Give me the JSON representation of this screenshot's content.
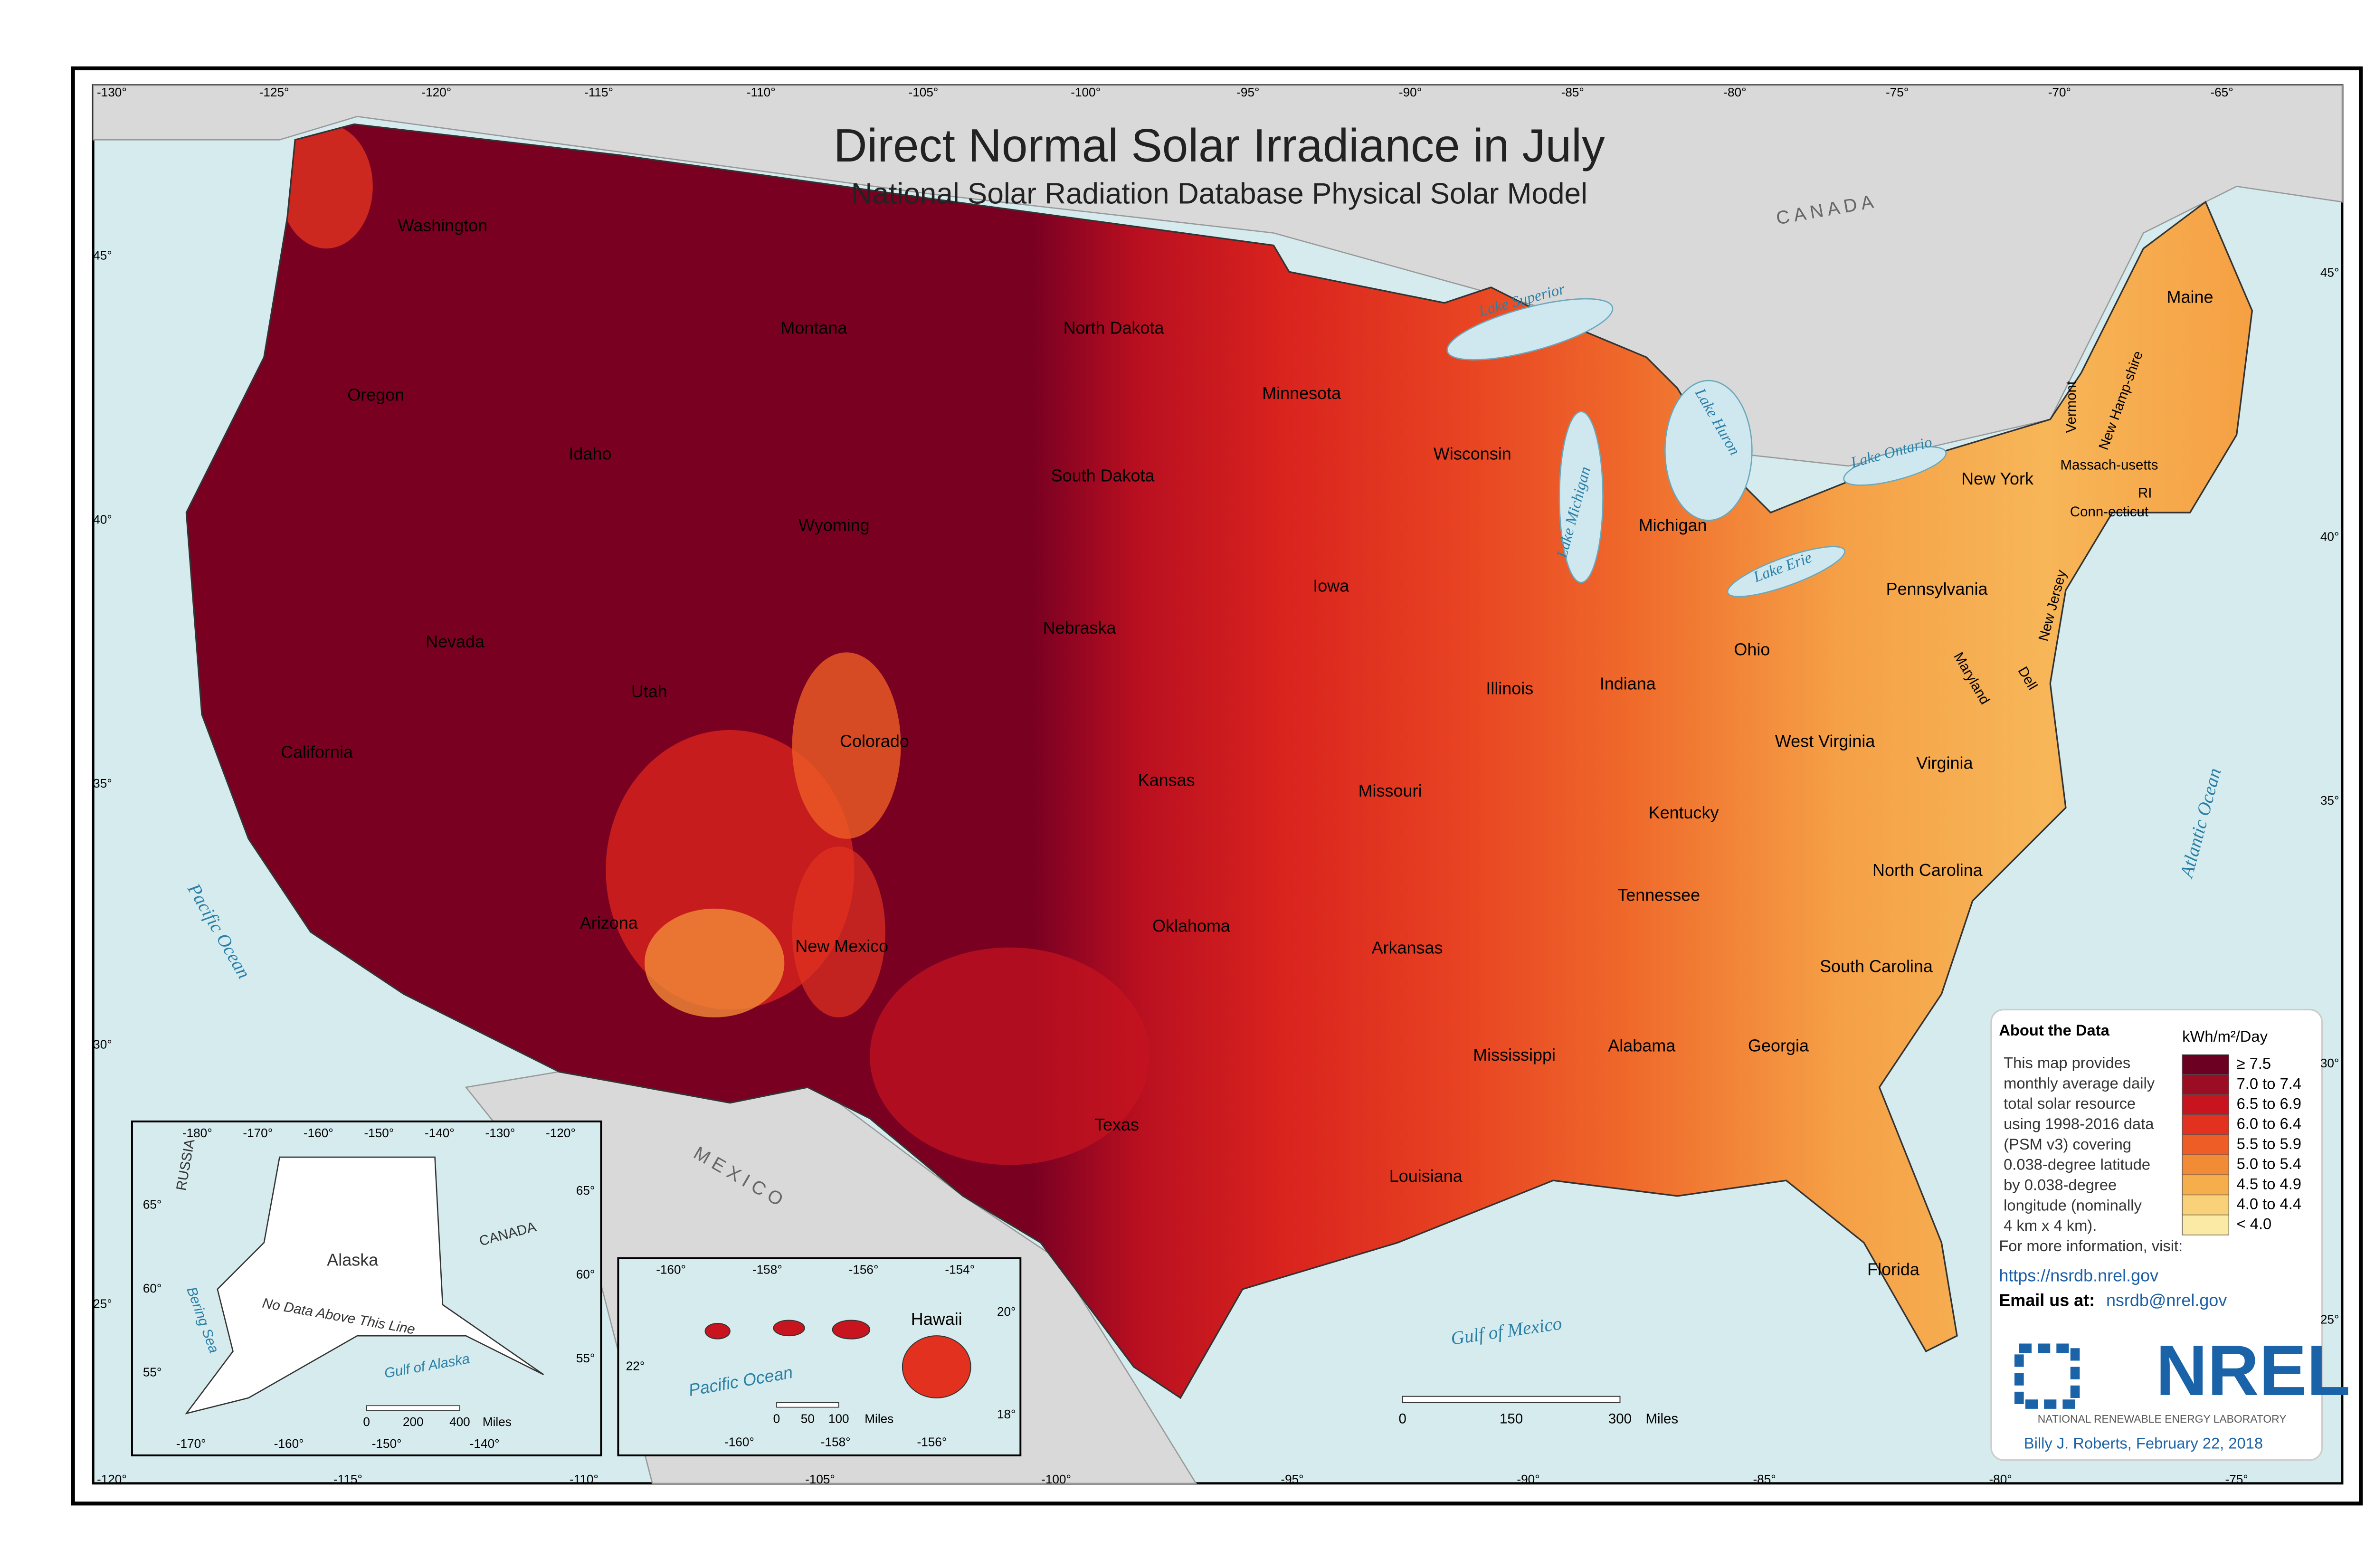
{
  "title": "Direct Normal Solar Irradiance in July",
  "subtitle": "National Solar Radiation Database Physical Solar Model",
  "graticule": {
    "top": [
      "-130°",
      "-125°",
      "-120°",
      "-115°",
      "-110°",
      "-105°",
      "-100°",
      "-95°",
      "-90°",
      "-85°",
      "-80°",
      "-75°",
      "-70°",
      "-65°"
    ],
    "bottom": [
      "-120°",
      "-115°",
      "-110°",
      "-105°",
      "-100°",
      "-95°",
      "-90°",
      "-85°",
      "-80°",
      "-75°"
    ],
    "left": [
      "45°",
      "40°",
      "35°",
      "30°",
      "25°"
    ],
    "right": [
      "45°",
      "40°",
      "35°",
      "30°",
      "25°"
    ]
  },
  "states": [
    "Washington",
    "Oregon",
    "Idaho",
    "Montana",
    "Wyoming",
    "Nevada",
    "Utah",
    "Colorado",
    "California",
    "Arizona",
    "New Mexico",
    "North Dakota",
    "South Dakota",
    "Nebraska",
    "Kansas",
    "Oklahoma",
    "Texas",
    "Minnesota",
    "Iowa",
    "Missouri",
    "Arkansas",
    "Louisiana",
    "Wisconsin",
    "Illinois",
    "Michigan",
    "Indiana",
    "Ohio",
    "Kentucky",
    "Tennessee",
    "Mississippi",
    "Alabama",
    "Georgia",
    "Florida",
    "South Carolina",
    "North Carolina",
    "Virginia",
    "West Virginia",
    "Pennsylvania",
    "New York",
    "Maine",
    "Vermont",
    "New Hamp-shire",
    "Massach-usetts",
    "Conn-ecticut",
    "RI",
    "New Jersey",
    "Maryland",
    "Dell"
  ],
  "water": [
    "Lake Superior",
    "Lake Huron",
    "Lake Michigan",
    "Lake Ontario",
    "Lake Erie",
    "Pacific Ocean",
    "Atlantic Ocean",
    "Gulf of Mexico"
  ],
  "countries": [
    "C A N A D A",
    "M E X I C O"
  ],
  "scale": [
    "0",
    "150",
    "300",
    "Miles"
  ],
  "about": {
    "title": "About the Data",
    "lines": [
      "This map provides",
      "monthly average daily",
      "total solar resource",
      "using 1998-2016 data",
      "(PSM v3) covering",
      "0.038-degree latitude",
      "by 0.038-degree",
      "longitude (nominally",
      "4 km x 4 km).",
      "For more information, visit:"
    ],
    "link": "https://nsrdb.nrel.gov",
    "email_label": "Email us at:",
    "email": "nsrdb@nrel.gov"
  },
  "legend": {
    "title": "kWh/m²/Day",
    "items": [
      {
        "label": "≥ 7.5",
        "color": "#6b0023"
      },
      {
        "label": "7.0 to 7.4",
        "color": "#9b0d22"
      },
      {
        "label": "6.5 to 6.9",
        "color": "#c8141f"
      },
      {
        "label": "6.0 to 6.4",
        "color": "#e2321f"
      },
      {
        "label": "5.5 to 5.9",
        "color": "#ee5d26"
      },
      {
        "label": "5.0 to 5.4",
        "color": "#f28b36"
      },
      {
        "label": "4.5 to 4.9",
        "color": "#f6ae4c"
      },
      {
        "label": "4.0 to 4.4",
        "color": "#f9d178"
      },
      {
        "label": "< 4.0",
        "color": "#fbeaa6"
      }
    ]
  },
  "logo": {
    "name": "NREL",
    "full": "NATIONAL RENEWABLE ENERGY LABORATORY"
  },
  "credit": "Billy J. Roberts,  February 22, 2018",
  "alaska": {
    "labels": [
      "Alaska",
      "RUSSIA",
      "CANADA",
      "Bering Sea",
      "Gulf of Alaska",
      "No Data Above This Line"
    ],
    "top": [
      "-180°",
      "-170°",
      "-160°",
      "-150°",
      "-140°",
      "-130°",
      "-120°"
    ],
    "bottom": [
      "-170°",
      "-160°",
      "-150°",
      "-140°"
    ],
    "left": [
      "65°",
      "60°",
      "55°"
    ],
    "right": [
      "65°",
      "60°",
      "55°"
    ],
    "scale": [
      "0",
      "200",
      "400",
      "Miles"
    ]
  },
  "hawaii": {
    "labels": [
      "Hawaii",
      "Pacific Ocean"
    ],
    "top": [
      "-160°",
      "-158°",
      "-156°",
      "-154°"
    ],
    "bottom": [
      "-160°",
      "-158°",
      "-156°"
    ],
    "left": [
      "22°"
    ],
    "right": [
      "20°",
      "18°"
    ],
    "scale": [
      "0",
      "50",
      "100",
      "Miles"
    ]
  }
}
